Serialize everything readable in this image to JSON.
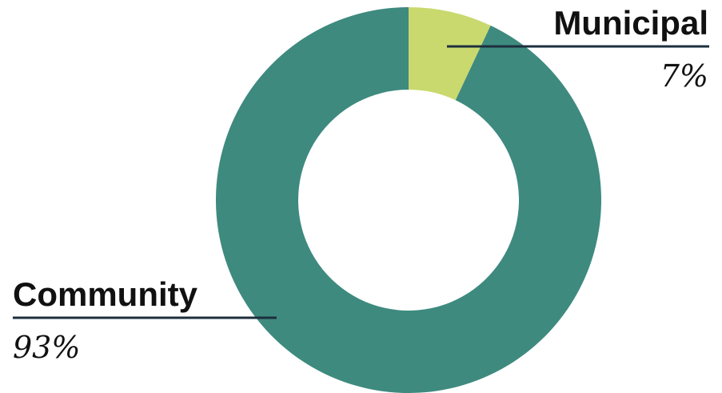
{
  "chart_data": {
    "type": "pie",
    "donut": true,
    "categories": [
      "Municipal",
      "Community"
    ],
    "values": [
      7,
      93
    ],
    "labels": [
      "7%",
      "93%"
    ],
    "colors": {
      "Municipal": "#c9d96e",
      "Community": "#3e8a7f"
    },
    "leader_line_color": "#1d2f3e"
  }
}
